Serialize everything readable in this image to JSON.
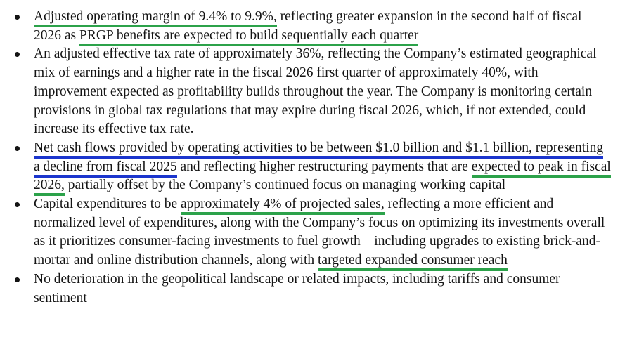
{
  "colors": {
    "text": "#141414",
    "green_underline": "#2ca24a",
    "blue_underline": "#1b35cd",
    "background": "#ffffff"
  },
  "document": {
    "bullets": [
      {
        "segments": [
          {
            "text": "Adjusted operating margin of 9.4% to 9.9%,",
            "mark": "green"
          },
          {
            "text": " reflecting greater expansion in the second half of fiscal 2026 as ",
            "mark": null
          },
          {
            "text": "PRGP benefits are expected to build sequentially each quarter",
            "mark": "green"
          }
        ]
      },
      {
        "segments": [
          {
            "text": "An adjusted effective tax rate of approximately 36%, reflecting the Company’s estimated geographical mix of earnings and a higher rate in the fiscal 2026 first quarter of approximately 40%, with improvement expected as profitability builds throughout the year. The Company is monitoring certain provisions in global tax regulations that may expire during fiscal 2026, which, if not extended, could increase its effective tax rate.",
            "mark": null
          }
        ]
      },
      {
        "segments": [
          {
            "text": "Net cash flows provided by operating activities to be between $1.0 billion and $1.1 billion, representing a decline from fiscal 2025",
            "mark": "blue"
          },
          {
            "text": " and reflecting higher restructuring payments that are ",
            "mark": null
          },
          {
            "text": "expected to peak in fiscal 2026,",
            "mark": "green"
          },
          {
            "text": " partially offset by the Company’s continued focus on managing working capital",
            "mark": null
          }
        ]
      },
      {
        "segments": [
          {
            "text": "Capital expenditures to be ",
            "mark": null
          },
          {
            "text": "approximately 4% of projected sales,",
            "mark": "green"
          },
          {
            "text": " reflecting a more efficient and normalized level of expenditures, along with the Company’s focus on optimizing its investments overall as it prioritizes consumer-facing investments to fuel growth—including upgrades to existing brick-and-mortar and online distribution channels, along with ",
            "mark": null
          },
          {
            "text": "targeted expanded consumer reach",
            "mark": "green"
          }
        ]
      },
      {
        "segments": [
          {
            "text": "No deterioration in the geopolitical landscape or related impacts, including tariffs and consumer sentiment",
            "mark": null
          }
        ]
      }
    ]
  }
}
